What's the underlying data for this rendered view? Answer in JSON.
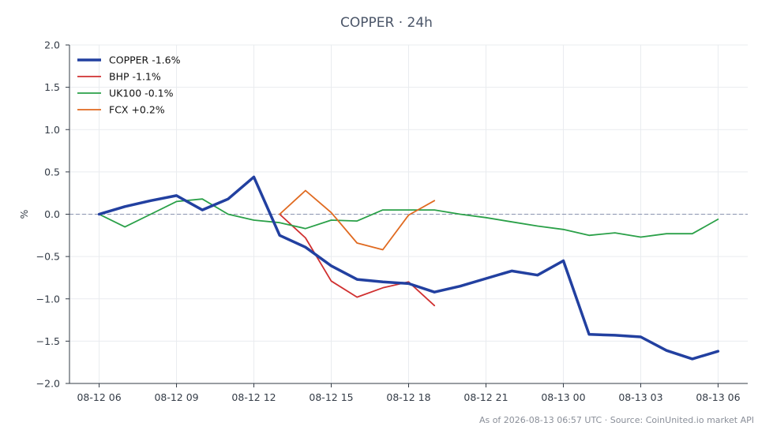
{
  "chart_data": {
    "type": "line",
    "title": "COPPER · 24h",
    "ylabel": "%",
    "xlabel": "",
    "ylim": [
      -2.0,
      2.0
    ],
    "yticks": [
      -2.0,
      -1.5,
      -1.0,
      -0.5,
      0.0,
      0.5,
      1.0,
      1.5,
      2.0
    ],
    "ytick_labels": [
      "−2.0",
      "−1.5",
      "−1.0",
      "−0.5",
      "0.0",
      "0.5",
      "1.0",
      "1.5",
      "2.0"
    ],
    "xlim": [
      -1.15,
      25.15
    ],
    "xtick_positions": [
      0,
      3,
      6,
      9,
      12,
      15,
      18,
      21,
      24
    ],
    "xtick_labels": [
      "08-12 06",
      "08-12 09",
      "08-12 12",
      "08-12 15",
      "08-12 18",
      "08-12 21",
      "08-13 00",
      "08-13 03",
      "08-13 06"
    ],
    "x_unit": "hours since 08-12 06:00",
    "grid": true,
    "zero_line": true,
    "legend_position": "top-left",
    "series": [
      {
        "name": "COPPER -1.6%",
        "color": "#2240a0",
        "x": [
          0,
          1,
          2,
          3,
          4,
          5,
          6,
          7,
          8,
          9,
          10,
          11,
          12,
          13,
          14,
          15,
          16,
          17,
          18,
          19,
          20,
          21,
          22,
          23,
          24
        ],
        "values": [
          0.0,
          0.09,
          0.16,
          0.22,
          0.05,
          0.18,
          0.44,
          -0.25,
          -0.39,
          -0.61,
          -0.77,
          -0.8,
          -0.82,
          -0.92,
          -0.85,
          -0.76,
          -0.67,
          -0.72,
          -0.55,
          -1.42,
          -1.43,
          -1.45,
          -1.61,
          -1.71,
          -1.62
        ]
      },
      {
        "name": "BHP -1.1%",
        "color": "#d03030",
        "x": [
          7,
          8,
          9,
          10,
          11,
          12,
          13
        ],
        "values": [
          0.0,
          -0.28,
          -0.79,
          -0.98,
          -0.87,
          -0.8,
          -1.08
        ]
      },
      {
        "name": "UK100 -0.1%",
        "color": "#2aa048",
        "x": [
          0,
          1,
          2,
          3,
          4,
          5,
          6,
          7,
          8,
          9,
          10,
          11,
          12,
          13,
          14,
          15,
          16,
          17,
          18,
          19,
          20,
          21,
          22,
          23,
          24
        ],
        "values": [
          0.0,
          -0.15,
          0.0,
          0.15,
          0.18,
          0.0,
          -0.07,
          -0.1,
          -0.17,
          -0.07,
          -0.08,
          0.05,
          0.05,
          0.05,
          0.0,
          -0.04,
          -0.09,
          -0.14,
          -0.18,
          -0.25,
          -0.22,
          -0.27,
          -0.23,
          -0.23,
          -0.06
        ]
      },
      {
        "name": "FCX +0.2%",
        "color": "#e06a20",
        "x": [
          7,
          8,
          9,
          10,
          11,
          12,
          13
        ],
        "values": [
          0.0,
          0.28,
          0.02,
          -0.34,
          -0.42,
          -0.01,
          0.16
        ]
      }
    ]
  },
  "footer": {
    "note": "As of 2026-08-13 06:57 UTC · Source: CoinUnited.io market API"
  }
}
